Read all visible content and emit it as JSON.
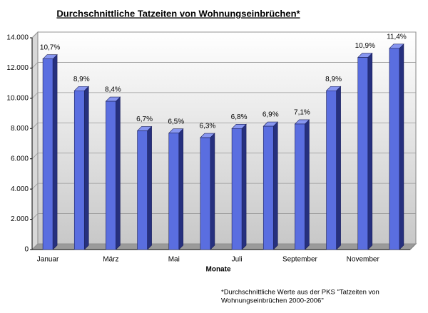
{
  "chart_data": {
    "type": "bar3d",
    "title": "Durchschnittliche Tatzeiten von Wohnungseinbrüchen*",
    "x_label": "Monate",
    "categories": [
      "Januar",
      null,
      "März",
      null,
      "Mai",
      null,
      "Juli",
      null,
      "September",
      null,
      "November",
      null
    ],
    "values": [
      12600,
      10500,
      9800,
      7850,
      7700,
      7400,
      8000,
      8150,
      8300,
      10500,
      12700,
      13300
    ],
    "percent_labels": [
      "10,7%",
      "8,9%",
      "8,4%",
      "6,7%",
      "6,5%",
      "6,3%",
      "6,8%",
      "6,9%",
      "7,1%",
      "8,9%",
      "10,9%",
      "11,4%"
    ],
    "color": "#5a6ee0",
    "ylim": [
      0,
      14000
    ],
    "yticks": [
      0,
      {
        "value": 2000,
        "label": "2.000"
      },
      {
        "value": 4000,
        "label": "4.000"
      },
      {
        "value": 6000,
        "label": "6.000"
      },
      {
        "value": 8000,
        "label": "8.000"
      },
      {
        "value": 10000,
        "label": "10.000"
      },
      {
        "value": 12000,
        "label": "12.000"
      },
      {
        "value": 14000,
        "label": "14.000"
      }
    ],
    "grid": true,
    "note": [
      "*Durchschnittliche Werte aus der PKS \"Tatzeiten von",
      "Wohnungseinbrüchen 2000-2006\""
    ]
  }
}
